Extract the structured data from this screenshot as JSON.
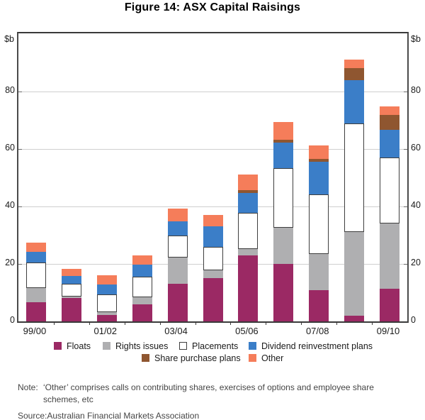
{
  "title": "Figure 14: ASX Capital Raisings",
  "axes": {
    "unit_label": "$b",
    "y_ticks": [
      0,
      20,
      40,
      60,
      80
    ],
    "x_tick_labels": [
      "99/00",
      "01/02",
      "03/04",
      "05/06",
      "07/08",
      "09/10"
    ]
  },
  "chart_data": {
    "type": "bar",
    "stacked": true,
    "title": "Figure 14: ASX Capital Raisings",
    "ylabel": "$b",
    "ylim": [
      0,
      100
    ],
    "grid": "horizontal",
    "legend_position": "bottom",
    "categories": [
      "99/00",
      "00/01",
      "01/02",
      "02/03",
      "03/04",
      "04/05",
      "05/06",
      "06/07",
      "07/08",
      "08/09",
      "09/10"
    ],
    "labeled_categories": [
      "99/00",
      "01/02",
      "03/04",
      "05/06",
      "07/08",
      "09/10"
    ],
    "series": [
      {
        "name": "Floats",
        "color": "#9B2964",
        "values": [
          6.7,
          8.1,
          2.3,
          6.0,
          13.0,
          15.0,
          23.0,
          20.1,
          10.8,
          2.1,
          11.3
        ]
      },
      {
        "name": "Rights issues",
        "color": "#AFAFB1",
        "values": [
          4.9,
          0.6,
          0.9,
          2.3,
          9.3,
          2.9,
          2.3,
          12.6,
          12.6,
          29.0,
          22.7
        ]
      },
      {
        "name": "Placements",
        "color": "#FFFFFF",
        "swatch_border": "#3E3E3E",
        "values": [
          8.8,
          4.4,
          6.2,
          7.2,
          7.7,
          8.1,
          12.5,
          20.6,
          20.7,
          37.8,
          23.0
        ]
      },
      {
        "name": "Dividend reinvestment plans",
        "color": "#3B7EC8",
        "textured": true,
        "values": [
          3.9,
          2.7,
          3.4,
          4.3,
          4.9,
          7.0,
          6.8,
          9.0,
          11.5,
          15.1,
          9.6
        ]
      },
      {
        "name": "Share purchase plans",
        "color": "#8F5630",
        "textured": true,
        "values": [
          0,
          0,
          0,
          0,
          0,
          0,
          1.0,
          1.0,
          1.0,
          4.1,
          5.2
        ]
      },
      {
        "name": "Other",
        "color": "#F57D5A",
        "textured": true,
        "values": [
          3.1,
          2.6,
          3.2,
          3.1,
          4.4,
          4.1,
          5.4,
          6.0,
          4.7,
          3.0,
          3.0
        ]
      }
    ],
    "totals": [
      27.4,
      18.4,
      16.0,
      22.9,
      39.3,
      37.1,
      51.0,
      69.3,
      61.3,
      91.1,
      74.8
    ]
  },
  "legend": {
    "rows": [
      [
        "Floats",
        "Rights issues",
        "Placements",
        "Dividend reinvestment plans"
      ],
      [
        "Share purchase plans",
        "Other"
      ]
    ]
  },
  "note": {
    "label": "Note:",
    "text": "‘Other’ comprises calls on contributing shares, exercises of options and employee share schemes, etc"
  },
  "source": {
    "label": "Source:",
    "text": "Australian Financial Markets Association"
  }
}
